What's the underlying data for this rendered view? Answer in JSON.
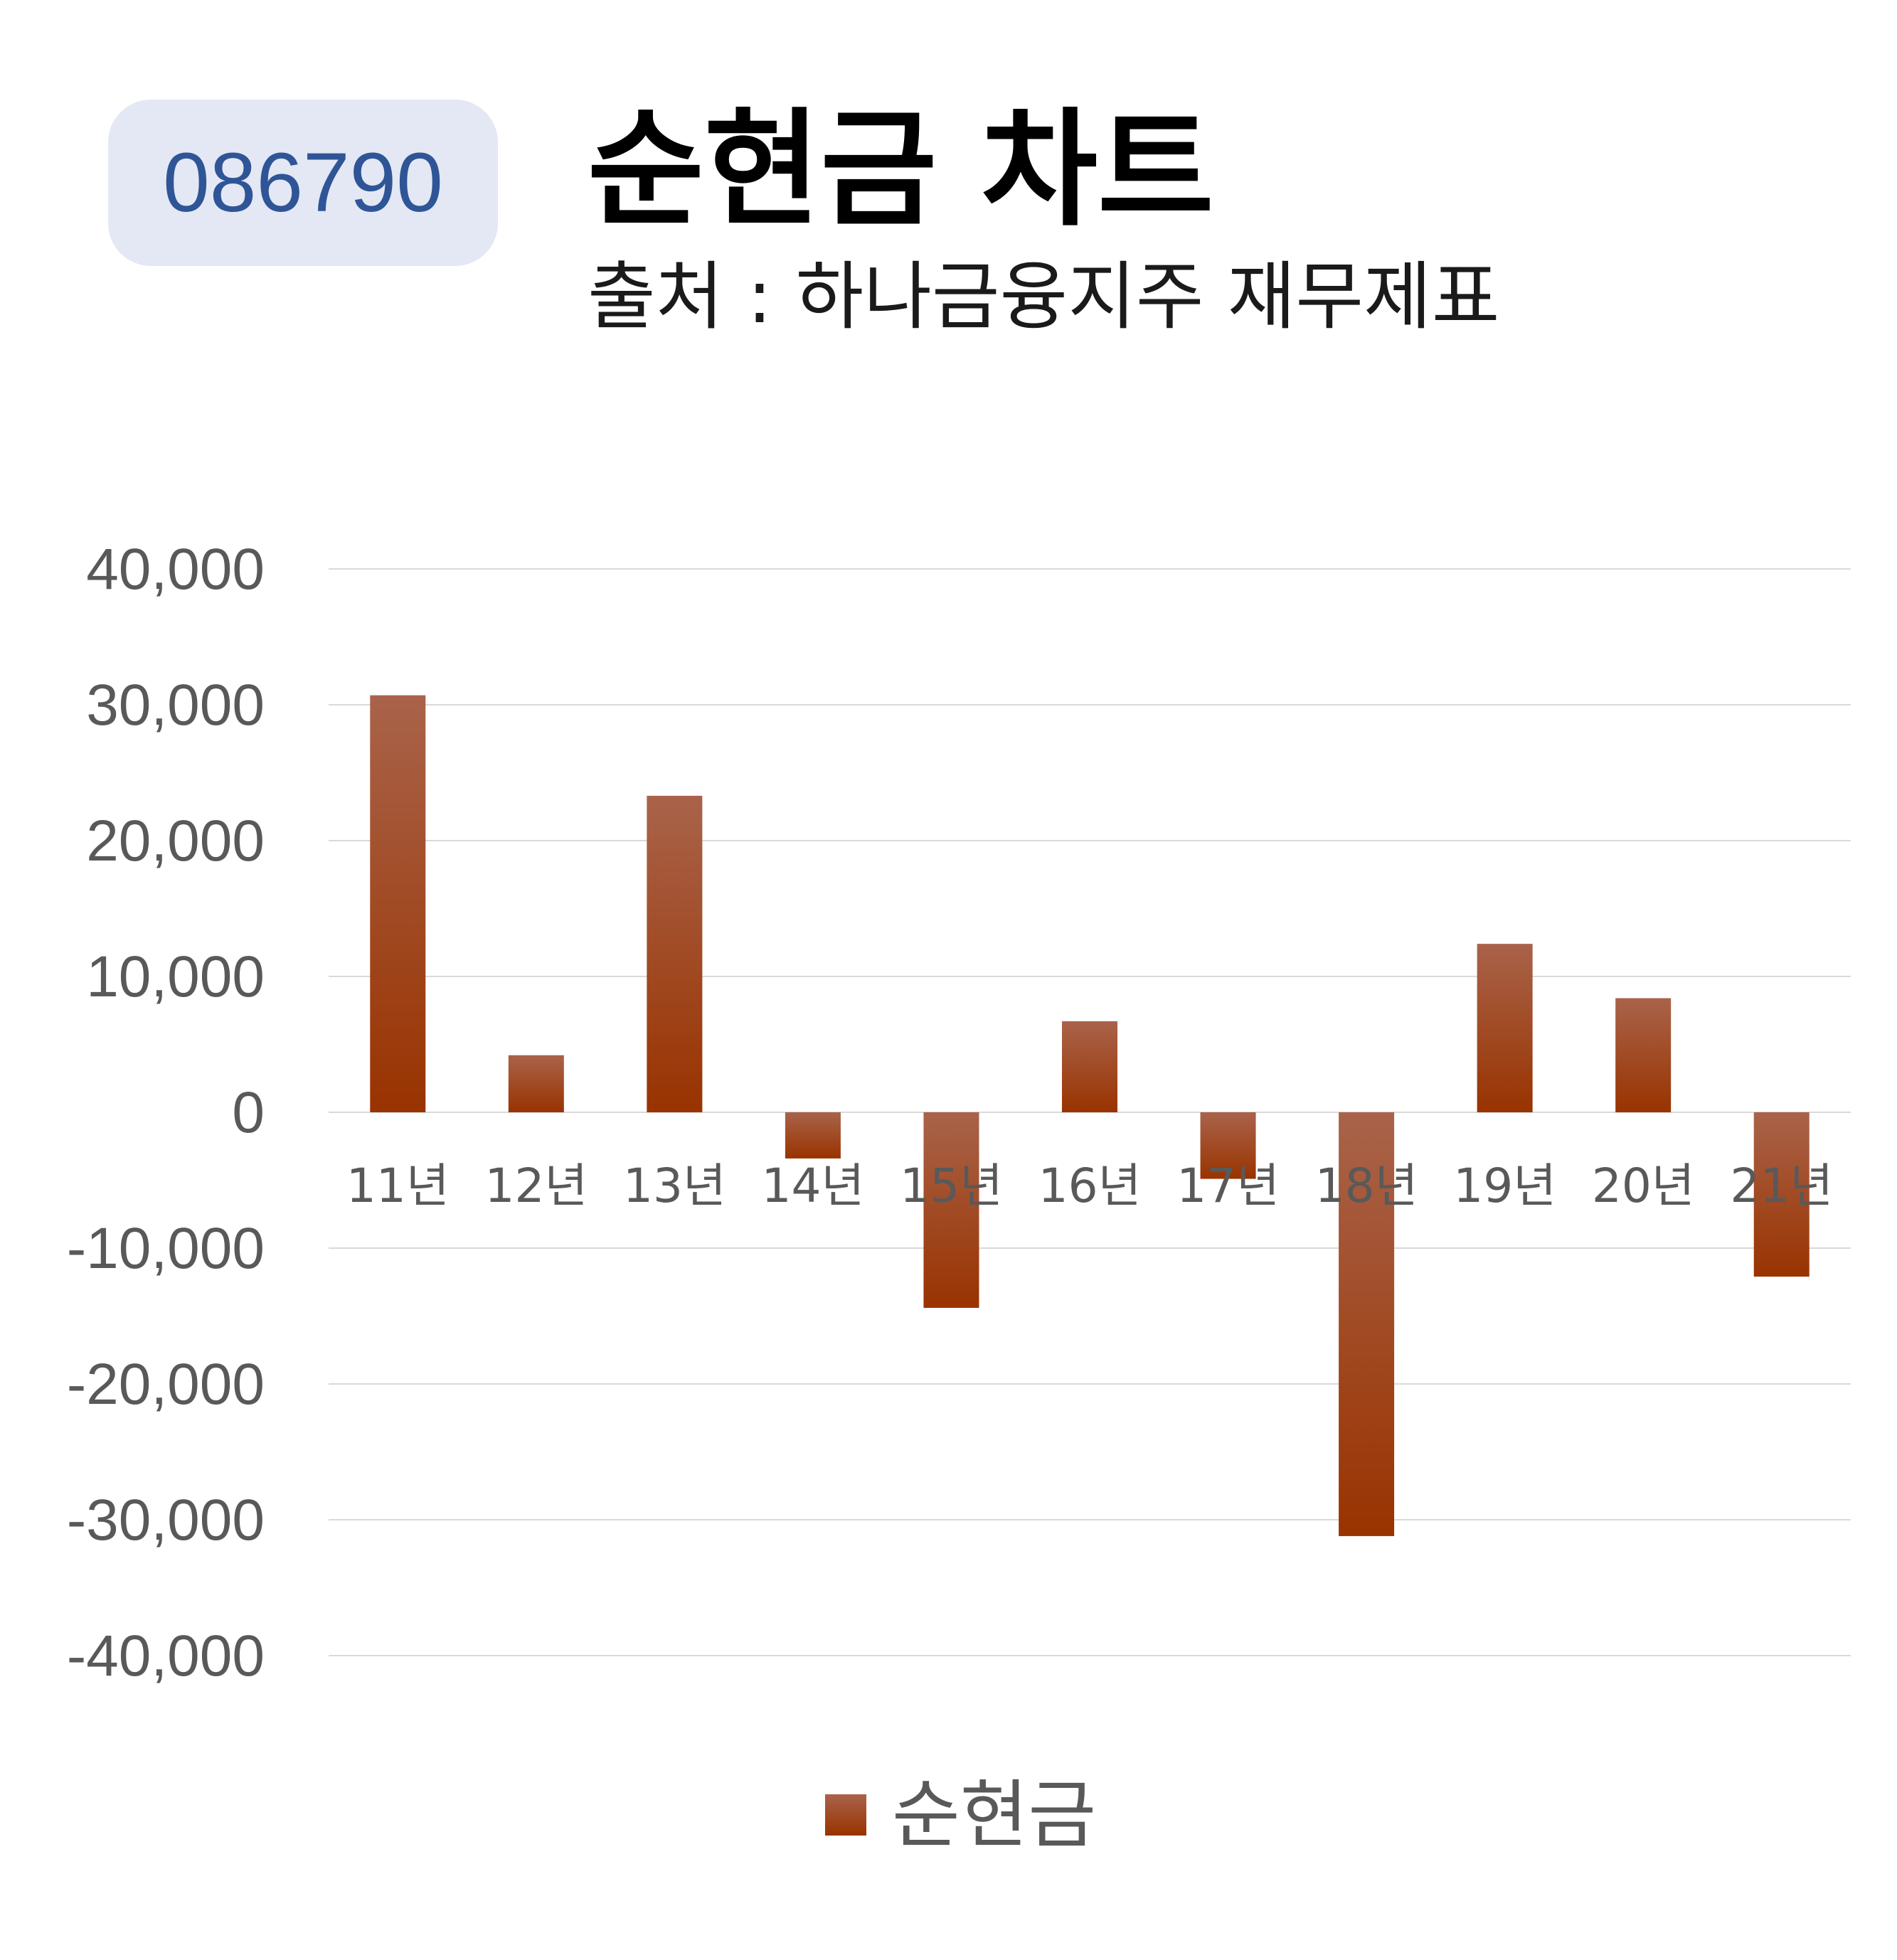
{
  "badge": {
    "code": "086790"
  },
  "header": {
    "title": "순현금 차트",
    "subtitle": "출처 : 하나금융지주 재무제표"
  },
  "colors": {
    "bar_top": "#a9634a",
    "bar_bottom": "#993300",
    "gridline": "#d9d9d9",
    "axis_text": "#595959",
    "badge_bg": "#e3e8f4",
    "badge_text": "#2f5597"
  },
  "chart_data": {
    "type": "bar",
    "categories": [
      "11년",
      "12년",
      "13년",
      "14년",
      "15년",
      "16년",
      "17년",
      "18년",
      "19년",
      "20년",
      "21년"
    ],
    "series": [
      {
        "name": "순현금",
        "values": [
          30700,
          4200,
          23300,
          -3400,
          -14400,
          6700,
          -4900,
          -31200,
          12400,
          8400,
          -12100
        ]
      }
    ],
    "ylim": [
      -40000,
      40000
    ],
    "yticks": [
      40000,
      30000,
      20000,
      10000,
      0,
      -10000,
      -20000,
      -30000,
      -40000
    ],
    "ytick_labels": [
      "40,000",
      "30,000",
      "20,000",
      "10,000",
      "0",
      "-10,000",
      "-20,000",
      "-30,000",
      "-40,000"
    ],
    "grid": true,
    "legend_position": "bottom"
  },
  "legend": {
    "label": "순현금"
  }
}
